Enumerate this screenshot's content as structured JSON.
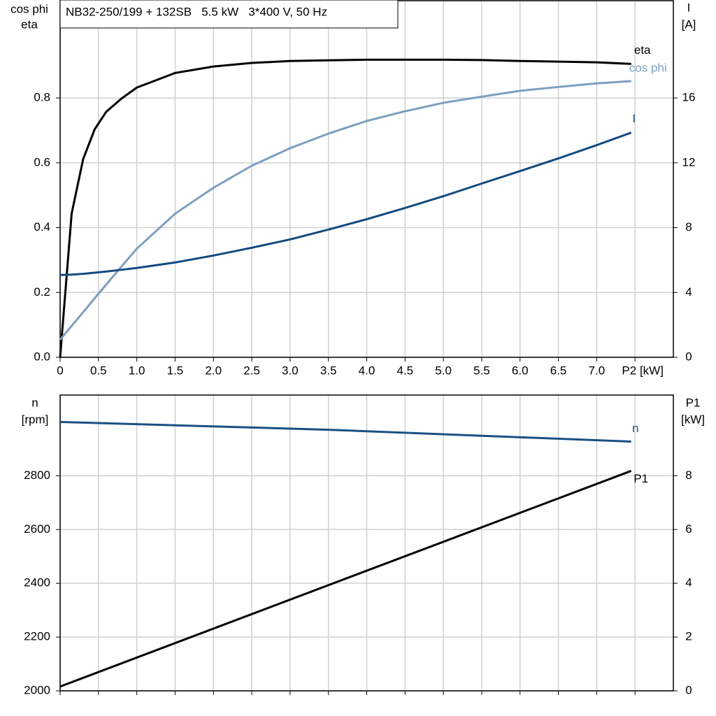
{
  "chart_data": [
    {
      "type": "line",
      "title": "NB32-250/199 + 132SB   5.5 kW   3*400 V, 50 Hz",
      "y_label": [
        "cos phi",
        "eta"
      ],
      "y2_label": [
        "I",
        "[A]"
      ],
      "x": [
        0,
        0.15,
        0.3,
        0.45,
        0.6,
        0.8,
        1.0,
        1.5,
        2.0,
        2.5,
        3.0,
        3.5,
        4.0,
        4.5,
        5.0,
        5.5,
        6.0,
        6.5,
        7.0,
        7.45
      ],
      "series": [
        {
          "name": "eta",
          "color": "#000000",
          "values": [
            0,
            0.443,
            0.611,
            0.703,
            0.757,
            0.798,
            0.832,
            0.877,
            0.897,
            0.908,
            0.914,
            0.916,
            0.918,
            0.918,
            0.918,
            0.917,
            0.914,
            0.912,
            0.91,
            0.905
          ]
        },
        {
          "name": "cos phi",
          "color": "#7d9fbf",
          "values": [
            0.054,
            0.097,
            0.139,
            0.182,
            0.224,
            0.28,
            0.335,
            0.443,
            0.523,
            0.591,
            0.645,
            0.69,
            0.729,
            0.759,
            0.785,
            0.804,
            0.822,
            0.834,
            0.845,
            0.852
          ]
        },
        {
          "name": "I",
          "color": "#124a80",
          "axis": "y2",
          "values": [
            5.08,
            5.1,
            5.15,
            5.22,
            5.29,
            5.4,
            5.51,
            5.85,
            6.28,
            6.76,
            7.27,
            7.88,
            8.52,
            9.21,
            9.94,
            10.72,
            11.49,
            12.27,
            13.09,
            13.86
          ]
        }
      ],
      "xlim": [
        0,
        8
      ],
      "xticks": [
        0,
        0.5,
        {
          "value": 1,
          "label": "1.0"
        },
        1.5,
        {
          "value": 2,
          "label": "2.0"
        },
        2.5,
        {
          "value": 3,
          "label": "3.0"
        },
        3.5,
        {
          "value": 4,
          "label": "4.0"
        },
        4.5,
        {
          "value": 5,
          "label": "5.0"
        },
        5.5,
        {
          "value": 6,
          "label": "6.0"
        },
        6.5,
        {
          "value": 7,
          "label": "7.0"
        },
        {
          "value": 7.5,
          "label": "P2 [kW]"
        }
      ],
      "ylim": [
        0,
        1.1
      ],
      "yticks": [
        {
          "value": 0,
          "label": "0.0"
        },
        0.2,
        0.4,
        0.6,
        0.8
      ],
      "y2lim": [
        0,
        22
      ],
      "y2ticks": [
        0,
        4,
        8,
        12,
        16
      ],
      "grid": true
    },
    {
      "type": "line",
      "y_label": [
        "n",
        "[rpm]"
      ],
      "y2_label": [
        "P1",
        "[kW]"
      ],
      "x": [
        0,
        3.5,
        7.45
      ],
      "series": [
        {
          "name": "n",
          "color": "#1a4f84",
          "values": [
            3000,
            2971,
            2927
          ]
        },
        {
          "name": "P1",
          "color": "#000000",
          "axis": "y2",
          "values": [
            0.16,
            3.93,
            8.18
          ]
        }
      ],
      "xlim": [
        0,
        8
      ],
      "xticks": [
        0,
        0.5,
        1,
        1.5,
        2,
        2.5,
        3,
        3.5,
        4,
        4.5,
        5,
        5.5,
        6,
        6.5,
        7,
        7.5
      ],
      "ylim": [
        2000,
        3100
      ],
      "yticks": [
        2000,
        2200,
        2400,
        2600,
        2800
      ],
      "y2lim": [
        0,
        11
      ],
      "y2ticks": [
        0,
        2,
        4,
        6,
        8
      ],
      "grid": true
    }
  ]
}
